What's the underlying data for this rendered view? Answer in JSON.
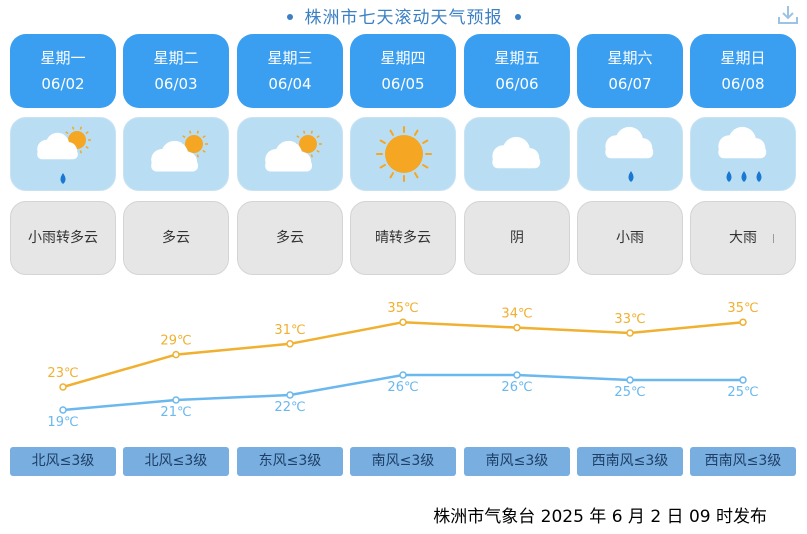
{
  "title": "株洲市七天滚动天气预报",
  "footer": "株洲市气象台 2025 年 6 月 2 日 09 时发布",
  "colors": {
    "day_card": "#3a9ff0",
    "icon_card": "#b9def4",
    "text_card": "#e6e6e6",
    "high_line": "#f0b030",
    "low_line": "#6ab8ee",
    "wind_pill": "#78aee0"
  },
  "days": [
    {
      "weekday": "星期一",
      "date": "06/02",
      "weather": "小雨转多云",
      "icon": "sun-cloud-rain-icon",
      "wind": "北风≤3级"
    },
    {
      "weekday": "星期二",
      "date": "06/03",
      "weather": "多云",
      "icon": "partly-cloudy-icon",
      "wind": "北风≤3级"
    },
    {
      "weekday": "星期三",
      "date": "06/04",
      "weather": "多云",
      "icon": "partly-cloudy-icon",
      "wind": "东风≤3级"
    },
    {
      "weekday": "星期四",
      "date": "06/05",
      "weather": "晴转多云",
      "icon": "sun-icon",
      "wind": "南风≤3级"
    },
    {
      "weekday": "星期五",
      "date": "06/06",
      "weather": "阴",
      "icon": "cloud-icon",
      "wind": "南风≤3级"
    },
    {
      "weekday": "星期六",
      "date": "06/07",
      "weather": "小雨",
      "icon": "light-rain-icon",
      "wind": "西南风≤3级"
    },
    {
      "weekday": "星期日",
      "date": "06/08",
      "weather": "大雨",
      "icon": "heavy-rain-icon",
      "wind": "西南风≤3级"
    }
  ],
  "chart_data": {
    "type": "line",
    "categories": [
      "06/02",
      "06/03",
      "06/04",
      "06/05",
      "06/06",
      "06/07",
      "06/08"
    ],
    "unit": "℃",
    "series": [
      {
        "values": [
          23,
          29,
          31,
          35,
          34,
          33,
          35
        ],
        "color": "#f0b030"
      },
      {
        "values": [
          19,
          21,
          22,
          26,
          26,
          25,
          25
        ],
        "color": "#6ab8ee"
      }
    ],
    "grid": false,
    "axes_visible": false
  }
}
